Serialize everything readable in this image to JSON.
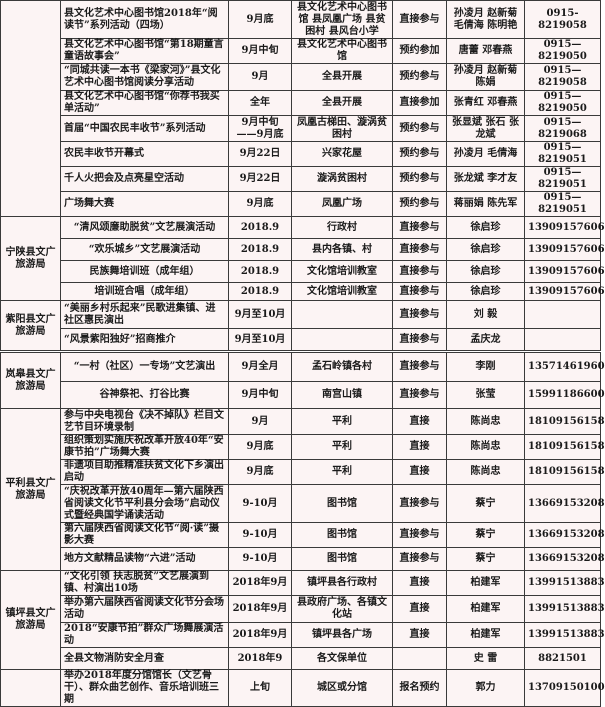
{
  "blocks": [
    {
      "groups": [
        {
          "unit": "",
          "rows": [
            [
              "县文化艺术中心图书馆2018年“阅读节”系列活动（四场）",
              "9月底",
              "县文化艺术中心图书馆 县凤凰广场 县贫困村 县风台小学",
              "直接参与",
              "孙凌月 赵新菊 毛倩海 陈明艳",
              "0915-8219058"
            ],
            [
              "县文化艺术中心图书馆“第18期童言童语故事会”",
              "9月中旬",
              "县文化艺术中心图书馆",
              "预约参加",
              "唐蕾 邓春燕",
              "0915—8219050"
            ],
            [
              "“同城共读一本书《梁家河》”县文化艺术中心图书馆阅读分享活动",
              "9月",
              "全县开展",
              "预约参与",
              "孙凌月 赵新菊 陈娟",
              "0915—8219058"
            ],
            [
              "县文化艺术中心图书馆“你荐书我买单活动”",
              "全年",
              "全县开展",
              "直接参加",
              "张青红 邓春燕",
              "0915—8219050"
            ],
            [
              "首届“中国农民丰收节”系列活动",
              "9月中旬——9月底",
              "凤凰古梯田、漩涡贫困村",
              "预约参与",
              "张显斌 张石 张龙斌",
              "0915—8219068"
            ],
            [
              "农民丰收节开幕式",
              "9月22日",
              "兴家花屋",
              "预约参与",
              "孙凌月 毛倩海",
              "0915—8219051"
            ],
            [
              "千人火把会及点亮星空活动",
              "9月22日",
              "漩涡贫困村",
              "预约参与",
              "张龙斌 李才友",
              "0915—8219051"
            ],
            [
              "广场舞大赛",
              "9月底",
              "凤凰广场",
              "预约参与",
              "蒋丽娟 陈先军",
              "0915—8219051"
            ]
          ]
        },
        {
          "unit": "宁陕县文广旅游局",
          "rows": [
            [
              "“清风颂廉助脱贫”文艺展演活动",
              "2018.9",
              "行政村",
              "直接参与",
              "徐启珍",
              "13909157606"
            ],
            [
              "“欢乐城乡”文艺展演活动",
              "2018.9",
              "县内各镇、村",
              "直接参与",
              "徐启珍",
              "13909157606"
            ],
            [
              "民族舞培训班（成年组）",
              "2018.9",
              "文化馆培训教室",
              "直接参与",
              "徐启珍",
              "13909157606"
            ],
            [
              "培训班合唱（成年组）",
              "2018.9",
              "文化馆培训教室",
              "直接参与",
              "徐启珍",
              "13909157606"
            ]
          ]
        },
        {
          "unit": "紫阳县文广旅游局",
          "rows": [
            [
              "“美丽乡村乐起来”民歌进集镇、进社区惠民演出",
              "9月至10月",
              "",
              "直接参与",
              "刘 毅",
              ""
            ],
            [
              "“风景紫阳独好”招商推介",
              "9月至10月",
              "",
              "直接参与",
              "孟庆龙",
              ""
            ]
          ]
        }
      ]
    },
    {
      "groups": [
        {
          "unit": "岚皋县文广旅游局",
          "rows": [
            [
              "“一村（社区）一专场”文艺演出",
              "9月全月",
              "孟石岭镇各村",
              "直接参与",
              "李刚",
              "13571461960"
            ],
            [
              "谷神祭祀、打谷比赛",
              "9月中旬",
              "南宫山镇",
              "直接参与",
              "张莹",
              "15991186600"
            ]
          ]
        },
        {
          "unit": "平利县文广旅游局",
          "rows": [
            [
              "参与中央电视台《决不掉队》栏目文艺节目环境录制",
              "9月",
              "平利",
              "直接",
              "陈尚忠",
              "18109156158"
            ],
            [
              "组织策划实施庆祝改革开放40年“安康节拍”广场舞大赛",
              "9月底",
              "平利",
              "直接",
              "陈尚忠",
              "18109156158"
            ],
            [
              "非遗项目助推精准扶贫文化下乡演出启动",
              "9月底",
              "平利",
              "直接",
              "陈尚忠",
              "18109156158"
            ],
            [
              "“庆祝改革开放40周年—第六届陕西省阅读文化节平利县分会场”启动仪式暨经典国学诵读活动",
              "9-10月",
              "图书馆",
              "直接参与",
              "蔡宁",
              "13669153208"
            ],
            [
              "第六届陕西省阅读文化节“阅·读”摄影大赛",
              "9-10月",
              "图书馆",
              "直接参与",
              "蔡宁",
              "13669153208"
            ],
            [
              "地方文献精品读物“六进”活动",
              "9-10月",
              "图书馆",
              "直接参与",
              "蔡宁",
              "13669153208"
            ]
          ]
        },
        {
          "unit": "镇坪县文广旅游局",
          "rows": [
            [
              "“文化引领 扶志脱贫”文艺展演到镇、村演出10场",
              "2018年9月",
              "镇坪县各行政村",
              "直接",
              "柏建军",
              "13991513883"
            ],
            [
              "举办第六届陕西省阅读文化节分会场活动",
              "2018年9月",
              "县政府广场、各镇文化站",
              "直接",
              "柏建军",
              "13991513883"
            ],
            [
              "2018“安康节拍”群众广场舞展演活动",
              "2018年9月",
              "镇坪县各广场",
              "直接",
              "柏建军",
              "13991513883"
            ],
            [
              "全县文物消防安全月查",
              "2018年9",
              "各文保单位",
              "",
              "史 雷",
              "8821501"
            ]
          ]
        },
        {
          "unit": "",
          "rows": [
            [
              "举办2018年度分馆馆长（文艺骨干）、群众曲艺创作、音乐培训班三期",
              "上旬",
              "城区或分馆",
              "报名预约",
              "郭力",
              "13709150100"
            ]
          ]
        }
      ]
    }
  ]
}
